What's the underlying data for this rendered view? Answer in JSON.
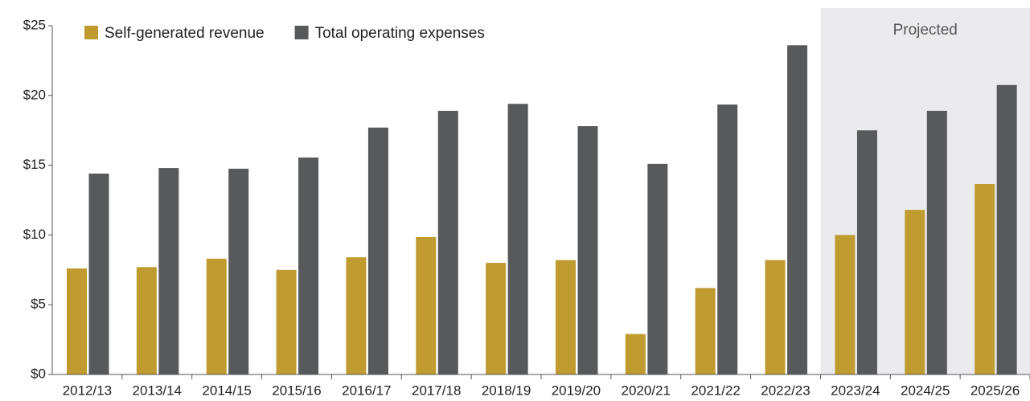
{
  "chart_data": {
    "type": "bar",
    "categories": [
      "2012/13",
      "2013/14",
      "2014/15",
      "2015/16",
      "2016/17",
      "2017/18",
      "2018/19",
      "2019/20",
      "2020/21",
      "2021/22",
      "2022/23",
      "2023/24",
      "2024/25",
      "2025/26"
    ],
    "series": [
      {
        "name": "Self-generated revenue",
        "color": "#bf9b30",
        "values": [
          7.6,
          7.7,
          8.3,
          7.5,
          8.4,
          9.85,
          8.0,
          8.2,
          2.9,
          6.2,
          8.2,
          10.0,
          11.8,
          13.65
        ]
      },
      {
        "name": "Total operating expenses",
        "color": "#58595b",
        "values": [
          14.4,
          14.8,
          14.75,
          15.55,
          17.7,
          18.9,
          19.4,
          17.8,
          15.1,
          19.35,
          23.6,
          17.5,
          18.9,
          20.75
        ]
      }
    ],
    "ylim": [
      0,
      25
    ],
    "yticks": [
      {
        "value": 0,
        "label": "$0"
      },
      {
        "value": 5,
        "label": "$5"
      },
      {
        "value": 10,
        "label": "$10"
      },
      {
        "value": 15,
        "label": "$15"
      },
      {
        "value": 20,
        "label": "$20"
      },
      {
        "value": 25,
        "label": "$25"
      }
    ],
    "annotation": {
      "text": "Projected",
      "from": "2023/24",
      "to": "2025/26",
      "color": "#ebebed"
    },
    "legend": "top-left"
  }
}
